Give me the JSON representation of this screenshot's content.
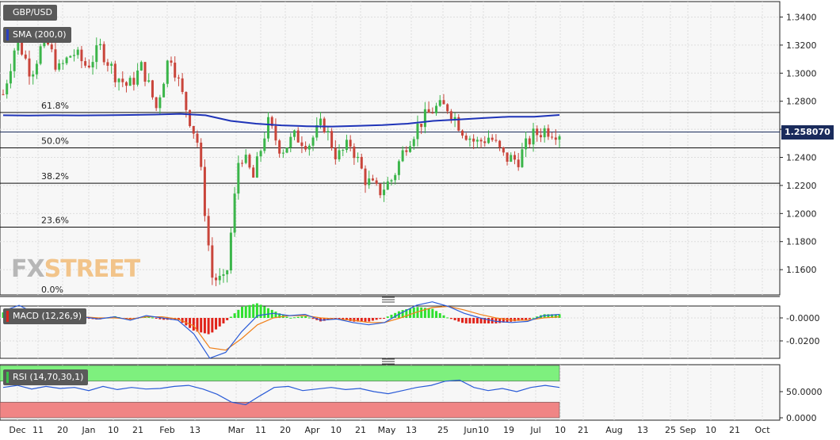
{
  "symbol": "GBP/USD",
  "indicators": {
    "sma": "SMA (200,0)",
    "macd": "MACD (12,26,9)",
    "rsi": "RSI (14,70,30,1)"
  },
  "last_price": "1.258070",
  "watermark": {
    "fx": "FX",
    "street": "STREET"
  },
  "colors": {
    "up": "#3bb54a",
    "down": "#c9453b",
    "sma": "#1f34b8",
    "macd": "#2a5bd7",
    "signal": "#f0801a",
    "hist_pos": "#2ee02e",
    "hist_neg": "#e0231a",
    "rsi_line": "#2a5bd7",
    "overbought": "#7ef07e",
    "oversold": "#f08585"
  },
  "chart_data": [
    {
      "type": "candlestick",
      "title": "GBP/USD",
      "y_ticks": [
        "1.3400",
        "1.3200",
        "1.3000",
        "1.2800",
        "1.2600",
        "1.2400",
        "1.2200",
        "1.2000",
        "1.1800",
        "1.1600"
      ],
      "ylim": [
        1.142,
        1.351
      ],
      "x_ticks": [
        "Dec",
        "11",
        "20",
        "Jan",
        "10",
        "21",
        "Feb",
        "13",
        "Mar",
        "11",
        "20",
        "Apr",
        "10",
        "21",
        "May",
        "13",
        "25",
        "Jun",
        "10",
        "19",
        "Jul",
        "10",
        "21",
        "Aug",
        "13",
        "25",
        "Sep",
        "10",
        "21",
        "Oct"
      ],
      "fibonacci": [
        {
          "label": "61.8%",
          "value": 1.272
        },
        {
          "label": "50.0%",
          "value": 1.2468
        },
        {
          "label": "38.2%",
          "value": 1.2216
        },
        {
          "label": "23.6%",
          "value": 1.1903
        },
        {
          "label": "0.0%",
          "value": 1.1409
        }
      ],
      "current_price": 1.25807,
      "sma200": [
        1.27,
        1.2698,
        1.27,
        1.2699,
        1.27,
        1.2702,
        1.2705,
        1.271,
        1.27,
        1.266,
        1.264,
        1.2628,
        1.2622,
        1.262,
        1.2625,
        1.263,
        1.264,
        1.266,
        1.267,
        1.268,
        1.269,
        1.269,
        1.2702
      ],
      "close_path": [
        1.285,
        1.325,
        1.3,
        1.325,
        1.302,
        1.315,
        1.305,
        1.318,
        1.3,
        1.29,
        1.305,
        1.275,
        1.315,
        1.28,
        1.25,
        1.155,
        1.15,
        1.245,
        1.225,
        1.265,
        1.245,
        1.255,
        1.25,
        1.265,
        1.24,
        1.25,
        1.225,
        1.215,
        1.225,
        1.25,
        1.265,
        1.275,
        1.276,
        1.26,
        1.25,
        1.255,
        1.24,
        1.238,
        1.255,
        1.26,
        1.258
      ]
    },
    {
      "type": "line",
      "title": "MACD (12,26,9)",
      "y_ticks": [
        "-0.0000",
        "-0.0200"
      ],
      "series": [
        "MACD",
        "Signal",
        "Histogram"
      ]
    },
    {
      "type": "line",
      "title": "RSI (14,70,30,1)",
      "y_ticks": [
        "50.0000",
        "0.0000"
      ],
      "levels": [
        70,
        30
      ]
    }
  ]
}
